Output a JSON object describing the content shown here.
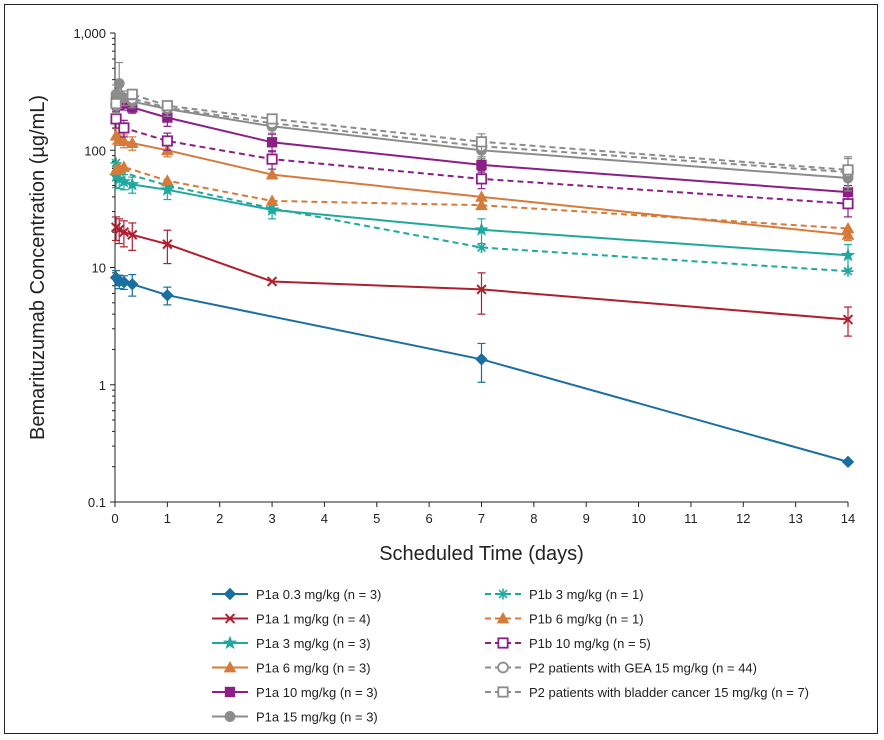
{
  "chart_data": {
    "type": "line",
    "title": "",
    "xlabel": "Scheduled Time (days)",
    "ylabel": "Bemarituzumab Concentration (µg/mL)",
    "xlim": [
      0,
      14
    ],
    "ylim": [
      0.1,
      1000
    ],
    "yscale": "log",
    "grid": false,
    "legend_placement": "bottom",
    "x_ticks": [
      "0",
      "1",
      "2",
      "3",
      "4",
      "5",
      "6",
      "7",
      "8",
      "9",
      "10",
      "11",
      "12",
      "13",
      "14"
    ],
    "y_ticks": [
      "0.1",
      "1",
      "10",
      "100",
      "1,000"
    ],
    "series": [
      {
        "name": "P1a 0.3 mg/kg (n = 3)",
        "color": "#1a6fa0",
        "dash": false,
        "marker": "diamond",
        "filled": true,
        "x": [
          0.02,
          0.08,
          0.17,
          0.33,
          1,
          7,
          14
        ],
        "y": [
          8.2,
          7.6,
          7.5,
          7.2,
          5.8,
          1.65,
          0.22
        ],
        "err": [
          1.2,
          1.0,
          1.0,
          1.5,
          1.0,
          0.6,
          0
        ]
      },
      {
        "name": "P1a 1 mg/kg (n = 4)",
        "color": "#b01f2e",
        "dash": false,
        "marker": "x",
        "filled": true,
        "x": [
          0.02,
          0.08,
          0.17,
          0.33,
          1,
          3,
          7,
          14
        ],
        "y": [
          22,
          21,
          20,
          19,
          15.8,
          7.6,
          6.5,
          3.6
        ],
        "err": [
          5,
          5,
          5,
          5,
          5,
          0,
          2.5,
          1.0
        ]
      },
      {
        "name": "P1a 3 mg/kg (n = 3)",
        "color": "#1fa89f",
        "dash": false,
        "marker": "star",
        "filled": true,
        "x": [
          0.02,
          0.08,
          0.17,
          0.33,
          1,
          3,
          7,
          14
        ],
        "y": [
          60,
          57,
          54,
          51,
          46,
          31,
          21,
          12.7
        ],
        "err": [
          12,
          10,
          8,
          8,
          8,
          5,
          5,
          3
        ]
      },
      {
        "name": "P1a 6 mg/kg (n = 3)",
        "color": "#d67a3a",
        "dash": false,
        "marker": "triangle",
        "filled": true,
        "x": [
          0.02,
          0.08,
          0.17,
          0.33,
          1,
          3,
          7,
          14
        ],
        "y": [
          133,
          125,
          120,
          115,
          100,
          62,
          40,
          19
        ],
        "err": [
          20,
          15,
          15,
          15,
          12,
          0,
          0,
          2
        ]
      },
      {
        "name": "P1a 10 mg/kg (n = 3)",
        "color": "#8b1f86",
        "dash": false,
        "marker": "square",
        "filled": true,
        "x": [
          0.02,
          0.08,
          0.17,
          0.33,
          1,
          3,
          7,
          14
        ],
        "y": [
          262,
          260,
          250,
          232,
          190,
          117,
          75,
          44
        ],
        "err": [
          40,
          35,
          30,
          25,
          30,
          20,
          10,
          6
        ]
      },
      {
        "name": "P1a 15 mg/kg (n = 3)",
        "color": "#8c8c8c",
        "dash": false,
        "marker": "circle",
        "filled": true,
        "x": [
          0.02,
          0.08,
          0.17,
          0.33,
          1,
          3,
          7,
          14
        ],
        "y": [
          300,
          370,
          280,
          260,
          225,
          160,
          100,
          58
        ],
        "err": [
          60,
          190,
          40,
          30,
          30,
          20,
          15,
          10
        ]
      },
      {
        "name": "P1b 3 mg/kg (n = 1)",
        "color": "#1fa89f",
        "dash": true,
        "marker": "asterisk",
        "filled": true,
        "x": [
          0.02,
          0.08,
          1,
          3,
          7,
          14
        ],
        "y": [
          78,
          66,
          50,
          32,
          14.8,
          9.3
        ],
        "err": [
          0,
          0,
          0,
          0,
          0,
          0
        ]
      },
      {
        "name": "P1b 6 mg/kg (n = 1)",
        "color": "#d67a3a",
        "dash": true,
        "marker": "triangle",
        "filled": true,
        "x": [
          0.02,
          0.08,
          0.17,
          1,
          3,
          7,
          14
        ],
        "y": [
          68,
          70,
          72,
          55,
          37,
          34,
          21.5
        ],
        "err": [
          0,
          0,
          0,
          0,
          0,
          0,
          0
        ]
      },
      {
        "name": "P1b 10 mg/kg (n = 5)",
        "color": "#8b1f86",
        "dash": true,
        "marker": "square",
        "filled": false,
        "x": [
          0.02,
          0.17,
          1,
          3,
          7,
          14
        ],
        "y": [
          185,
          155,
          120,
          84,
          57,
          35
        ],
        "err": [
          30,
          25,
          20,
          15,
          10,
          8
        ]
      },
      {
        "name": "P2 patients with GEA 15 mg/kg (n = 44)",
        "color": "#8c8c8c",
        "dash": true,
        "marker": "circle",
        "filled": false,
        "x": [
          0.02,
          0.33,
          1,
          3,
          7,
          14
        ],
        "y": [
          245,
          275,
          230,
          170,
          108,
          65
        ],
        "err": [
          40,
          30,
          20,
          15,
          20,
          20
        ]
      },
      {
        "name": "P2 patients with bladder cancer 15 mg/kg (n = 7)",
        "color": "#8c8c8c",
        "dash": true,
        "marker": "square",
        "filled": false,
        "x": [
          0.02,
          0.33,
          1,
          3,
          7,
          14
        ],
        "y": [
          250,
          300,
          240,
          185,
          118,
          68
        ],
        "err": [
          40,
          30,
          20,
          15,
          20,
          20
        ]
      }
    ]
  }
}
